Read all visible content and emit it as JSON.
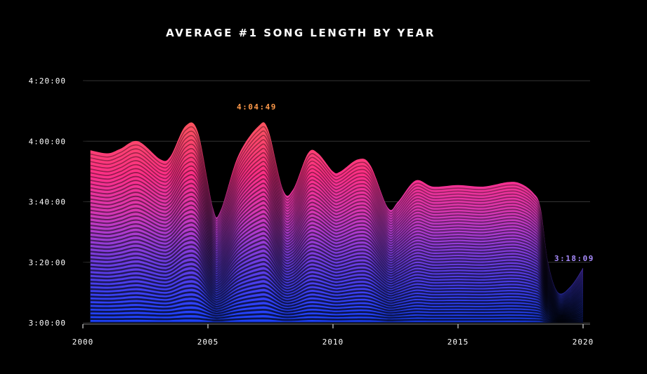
{
  "chart_data": {
    "type": "area",
    "title": "AVERAGE #1 SONG LENGTH BY YEAR",
    "xlabel": "",
    "ylabel": "",
    "xlim": [
      2000,
      2020
    ],
    "ylim_seconds": [
      10800,
      15600
    ],
    "x_ticks": [
      "2000",
      "2005",
      "2010",
      "2015",
      "2020"
    ],
    "y_ticks": [
      "3:00:00",
      "3:20:00",
      "3:40:00",
      "4:00:00",
      "4:20:00"
    ],
    "grid": "horizontal",
    "series": [
      {
        "x": [
          2000.3,
          2001,
          2001.5,
          2002.2,
          2003.1,
          2003.5,
          2004.1,
          2004.6,
          2005.2,
          2005.5,
          2006.2,
          2007.0,
          2007.4,
          2008.0,
          2008.4,
          2009.0,
          2009.4,
          2010.0,
          2010.3,
          2011.0,
          2011.5,
          2012.2,
          2012.6,
          2013.3,
          2014.0,
          2015.0,
          2016.0,
          2017.0,
          2017.5,
          2018.0,
          2018.3,
          2018.6,
          2019.0,
          2019.5,
          2020
        ],
        "y": [
          "3:57:00",
          "3:56:00",
          "3:57:30",
          "4:00:00",
          "3:54:00",
          "3:55:00",
          "4:05:00",
          "4:03:00",
          "3:38:00",
          "3:37:00",
          "3:55:00",
          "4:04:49",
          "4:04:00",
          "3:44:00",
          "3:44:00",
          "3:56:00",
          "3:56:00",
          "3:50:00",
          "3:50:00",
          "3:54:00",
          "3:52:00",
          "3:38:00",
          "3:40:00",
          "3:47:00",
          "3:45:00",
          "3:45:30",
          "3:45:00",
          "3:46:30",
          "3:46:00",
          "3:43:00",
          "3:38:00",
          "3:20:00",
          "3:10:00",
          "3:12:00",
          "3:18:09"
        ]
      }
    ],
    "annotations": [
      {
        "label": "4:04:49",
        "x": 2007,
        "y": "4:04:49",
        "color": "#ff9a4a"
      },
      {
        "label": "3:18:09",
        "x": 2020,
        "y": "3:18:09",
        "color": "#a98cff"
      }
    ],
    "colors": {
      "top": "#ff7a2e",
      "mid": "#ff2f86",
      "lower": "#b43cd8",
      "bottom": "#1f4bff",
      "grid": "#333333",
      "axis": "#ffffff"
    }
  }
}
